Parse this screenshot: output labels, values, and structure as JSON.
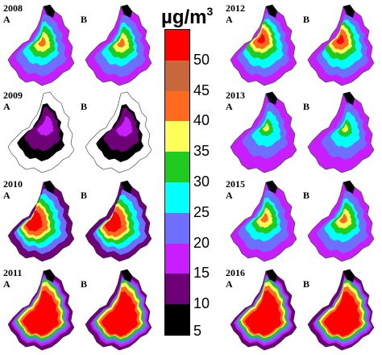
{
  "unit": {
    "base": "µg/m",
    "exponent": "3"
  },
  "legend": {
    "ticks": [
      "50",
      "45",
      "40",
      "35",
      "30",
      "25",
      "20",
      "15",
      "10",
      "5"
    ],
    "bands": [
      {
        "range": "50+",
        "color": "#ff0000"
      },
      {
        "range": "45-50",
        "color": "#c8663c"
      },
      {
        "range": "40-45",
        "color": "#ff6a1e"
      },
      {
        "range": "35-40",
        "color": "#ffff5a"
      },
      {
        "range": "30-35",
        "color": "#1ecb1e"
      },
      {
        "range": "25-30",
        "color": "#00ffff"
      },
      {
        "range": "20-25",
        "color": "#6e6eff"
      },
      {
        "range": "15-20",
        "color": "#c81eff"
      },
      {
        "range": "10-15",
        "color": "#6e0078"
      },
      {
        "range": "5-10",
        "color": "#000000"
      }
    ]
  },
  "panels": [
    {
      "year": "2008",
      "a": "A",
      "b": "B",
      "level": "medium"
    },
    {
      "year": "2009",
      "a": "A",
      "b": "B",
      "level": "low"
    },
    {
      "year": "2010",
      "a": "A",
      "b": "B",
      "level": "high"
    },
    {
      "year": "2011",
      "a": "A",
      "b": "B",
      "level": "very-high"
    },
    {
      "year": "2012",
      "a": "A",
      "b": "B",
      "level": "medium-high"
    },
    {
      "year": "2013",
      "a": "A",
      "b": "B",
      "level": "low-medium"
    },
    {
      "year": "2015",
      "a": "A",
      "b": "B",
      "level": "medium"
    },
    {
      "year": "2016",
      "a": "A",
      "b": "B",
      "level": "very-high"
    }
  ]
}
